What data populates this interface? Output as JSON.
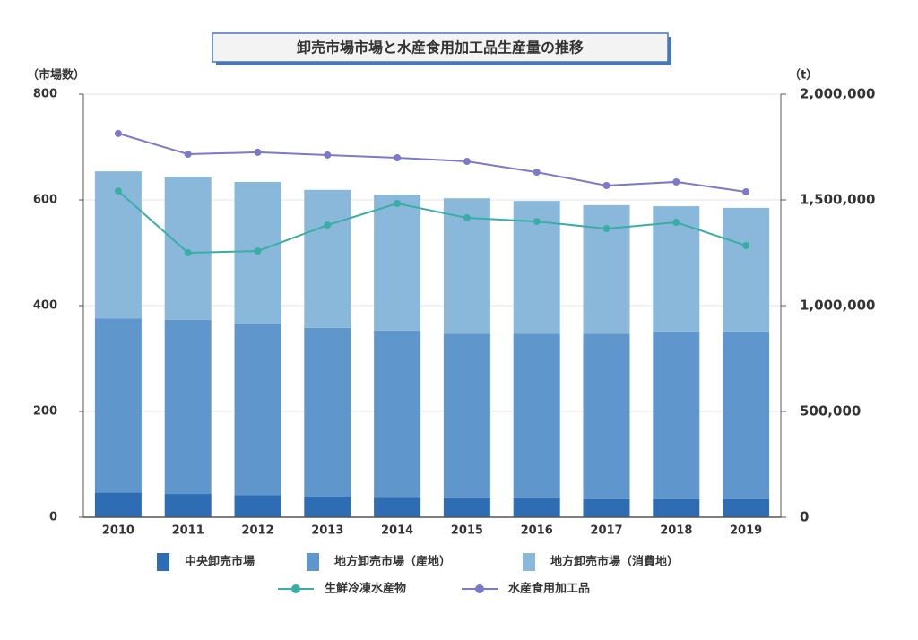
{
  "chart_data": {
    "type": "bar",
    "stacked": true,
    "title": "卸売市場市場と水産食用加工品生産量の推移",
    "y_label": "（市場数）",
    "y2_label": "（t）",
    "categories": [
      "2010",
      "2011",
      "2012",
      "2013",
      "2014",
      "2015",
      "2016",
      "2017",
      "2018",
      "2019"
    ],
    "ylim": [
      0,
      800
    ],
    "yticks": [
      0,
      200,
      400,
      600,
      800
    ],
    "y2lim": [
      0,
      2000000
    ],
    "y2ticks": [
      0,
      {
        "value": 500000,
        "label": "500,000"
      },
      {
        "value": 1000000,
        "label": "1,000,000"
      },
      {
        "value": 1500000,
        "label": "1,500,000"
      },
      {
        "value": 2000000,
        "label": "2,000,000"
      }
    ],
    "grid": true,
    "series": [
      {
        "name": "中央卸売市場",
        "type": "bar",
        "color": "#2e6db4",
        "values": [
          47,
          44,
          42,
          39,
          37,
          36,
          36,
          34,
          34,
          34
        ]
      },
      {
        "name": "地方卸売市場（産地）",
        "type": "bar",
        "color": "#5f97cc",
        "values": [
          329,
          329,
          324,
          319,
          316,
          311,
          311,
          313,
          317,
          317
        ]
      },
      {
        "name": "地方卸売市場（消費地）",
        "type": "bar",
        "color": "#8ab8da",
        "values": [
          278,
          271,
          268,
          261,
          257,
          256,
          251,
          243,
          237,
          234
        ]
      },
      {
        "name": "生鮮冷凍水産物",
        "type": "line",
        "axis": "y2",
        "color": "#3aaea4",
        "values": [
          1542000,
          1250000,
          1258000,
          1381000,
          1483000,
          1415000,
          1398000,
          1364000,
          1394000,
          1284000
        ]
      },
      {
        "name": "水産食用加工品",
        "type": "line",
        "axis": "y2",
        "color": "#7b79c9",
        "values": [
          1814000,
          1716000,
          1725000,
          1712000,
          1699000,
          1682000,
          1631000,
          1568000,
          1585000,
          1538000
        ]
      }
    ]
  }
}
